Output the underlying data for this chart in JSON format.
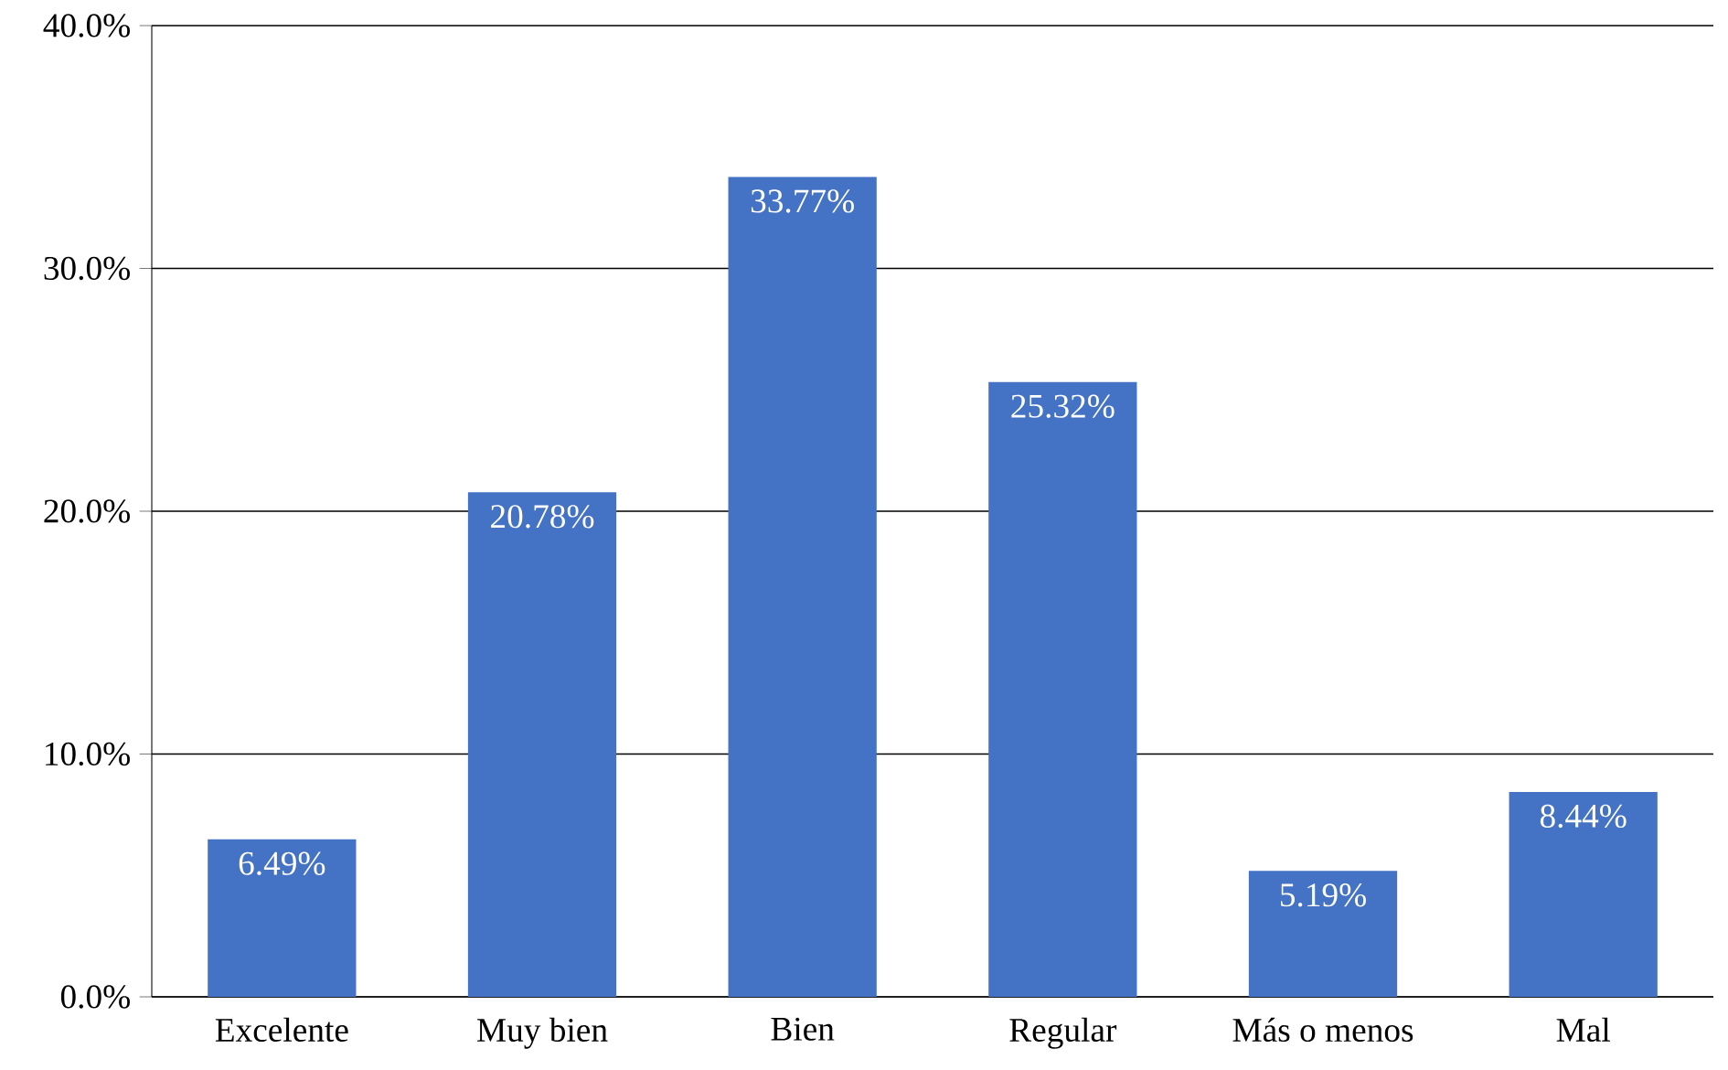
{
  "chart_data": {
    "type": "bar",
    "categories": [
      "Excelente",
      "Muy bien",
      "Bien",
      "Regular",
      "Más o menos",
      "Mal"
    ],
    "values": [
      6.49,
      20.78,
      33.77,
      25.32,
      5.19,
      8.44
    ],
    "value_labels": [
      "6.49%",
      "20.78%",
      "33.77%",
      "25.32%",
      "5.19%",
      "8.44%"
    ],
    "color": "#4472c4",
    "ylim": [
      0,
      40
    ],
    "yticks": [
      {
        "value": 0,
        "label": "0.0%"
      },
      {
        "value": 10,
        "label": "10.0%"
      },
      {
        "value": 20,
        "label": "20.0%"
      },
      {
        "value": 30,
        "label": "30.0%"
      },
      {
        "value": 40,
        "label": "40.0%"
      }
    ],
    "grid": "y"
  }
}
